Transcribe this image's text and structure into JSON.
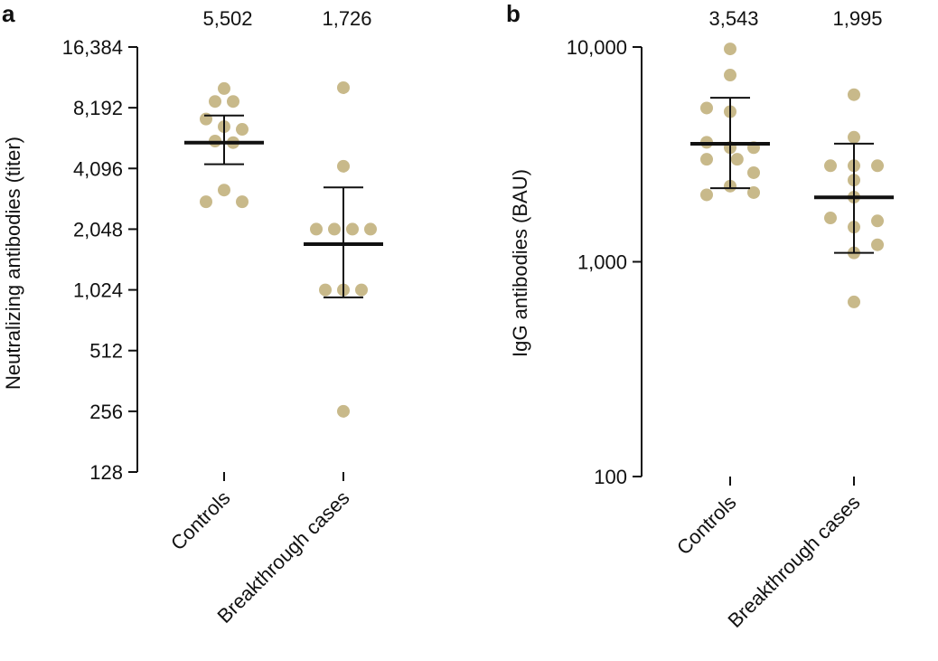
{
  "chart_data": [
    {
      "type": "scatter",
      "panel": "a",
      "scale": "log2",
      "ylabel": "Neutralizing antibodies (titer)",
      "ylim": [
        128,
        16384
      ],
      "yticks": [
        128,
        256,
        512,
        1024,
        2048,
        4096,
        8192,
        16384
      ],
      "ytick_labels": [
        "128",
        "256",
        "512",
        "1,024",
        "2,048",
        "4,096",
        "8,192",
        "16,384"
      ],
      "point_color": "#c8b98a",
      "categories": [
        "Controls",
        "Breakthrough cases"
      ],
      "groups": [
        {
          "name": "Controls",
          "geometric_mean": 5502,
          "geometric_mean_label": "5,502",
          "ci": [
            4300,
            7500
          ],
          "points": [
            {
              "value": 10200,
              "offset": 0
            },
            {
              "value": 8800,
              "offset": -0.5
            },
            {
              "value": 8800,
              "offset": 0.5
            },
            {
              "value": 7200,
              "offset": -1
            },
            {
              "value": 6600,
              "offset": 0
            },
            {
              "value": 6400,
              "offset": 1
            },
            {
              "value": 5600,
              "offset": -0.5
            },
            {
              "value": 5500,
              "offset": 0.5
            },
            {
              "value": 3200,
              "offset": 0
            },
            {
              "value": 2800,
              "offset": -1
            },
            {
              "value": 2800,
              "offset": 1
            }
          ]
        },
        {
          "name": "Breakthrough cases",
          "geometric_mean": 1726,
          "geometric_mean_label": "1,726",
          "ci": [
            940,
            3300
          ],
          "points": [
            {
              "value": 10300,
              "offset": 0
            },
            {
              "value": 4200,
              "offset": 0
            },
            {
              "value": 2048,
              "offset": -1.5
            },
            {
              "value": 2048,
              "offset": -0.5
            },
            {
              "value": 2048,
              "offset": 0.5
            },
            {
              "value": 2048,
              "offset": 1.5
            },
            {
              "value": 1024,
              "offset": -1
            },
            {
              "value": 1024,
              "offset": 0
            },
            {
              "value": 1024,
              "offset": 1
            },
            {
              "value": 256,
              "offset": 0
            }
          ]
        }
      ]
    },
    {
      "type": "scatter",
      "panel": "b",
      "scale": "log10",
      "ylabel": "IgG antibodies (BAU)",
      "ylim": [
        100,
        10000
      ],
      "yticks": [
        100,
        1000,
        10000
      ],
      "ytick_labels": [
        "100",
        "1,000",
        "10,000"
      ],
      "point_color": "#c8b98a",
      "categories": [
        "Controls",
        "Breakthrough cases"
      ],
      "groups": [
        {
          "name": "Controls",
          "geometric_mean": 3543,
          "geometric_mean_label": "3,543",
          "ci": [
            2200,
            5800
          ],
          "points": [
            {
              "value": 9800,
              "offset": 0
            },
            {
              "value": 7400,
              "offset": 0
            },
            {
              "value": 5200,
              "offset": -1
            },
            {
              "value": 5000,
              "offset": 0
            },
            {
              "value": 3600,
              "offset": -1
            },
            {
              "value": 3400,
              "offset": 0
            },
            {
              "value": 3400,
              "offset": 1
            },
            {
              "value": 3000,
              "offset": -1
            },
            {
              "value": 3000,
              "offset": 0.3
            },
            {
              "value": 2600,
              "offset": 1
            },
            {
              "value": 2250,
              "offset": 0
            },
            {
              "value": 2050,
              "offset": -1
            },
            {
              "value": 2100,
              "offset": 1
            }
          ]
        },
        {
          "name": "Breakthrough cases",
          "geometric_mean": 1995,
          "geometric_mean_label": "1,995",
          "ci": [
            1100,
            3550
          ],
          "points": [
            {
              "value": 6000,
              "offset": 0
            },
            {
              "value": 3800,
              "offset": 0
            },
            {
              "value": 2800,
              "offset": -1
            },
            {
              "value": 2800,
              "offset": 0
            },
            {
              "value": 2800,
              "offset": 1
            },
            {
              "value": 2400,
              "offset": 0
            },
            {
              "value": 2000,
              "offset": 0
            },
            {
              "value": 1600,
              "offset": -1
            },
            {
              "value": 1450,
              "offset": 0
            },
            {
              "value": 1550,
              "offset": 1
            },
            {
              "value": 1200,
              "offset": 1
            },
            {
              "value": 1100,
              "offset": 0
            },
            {
              "value": 650,
              "offset": 0
            }
          ]
        }
      ]
    }
  ]
}
